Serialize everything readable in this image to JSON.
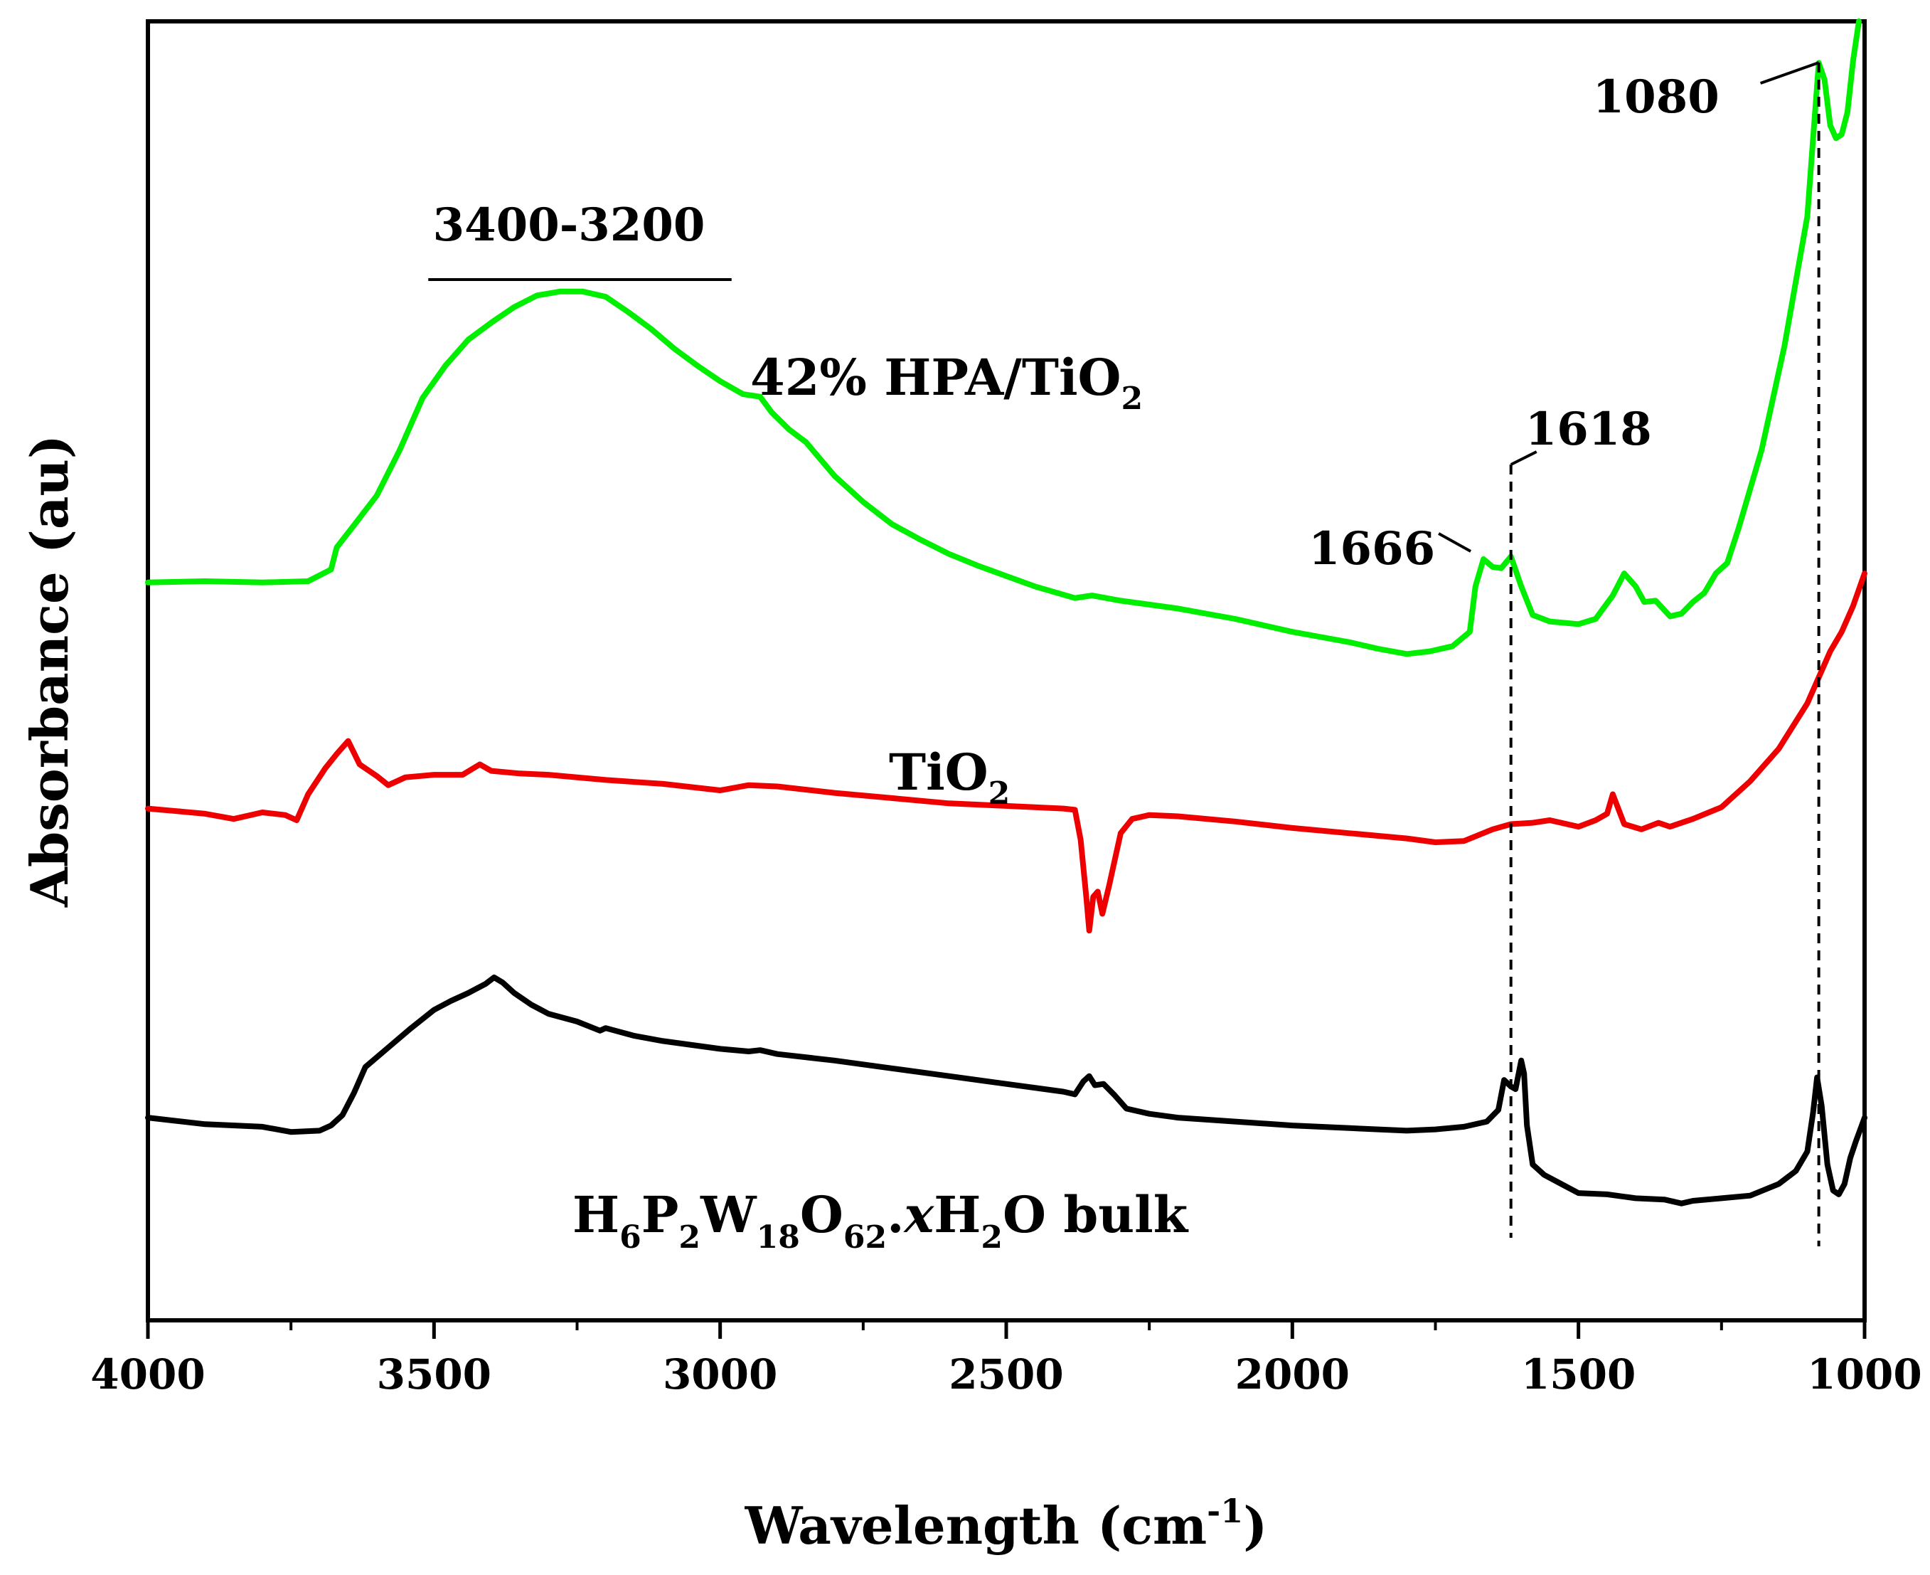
{
  "chart_data": {
    "type": "line",
    "title": "",
    "xlabel": "Wavelength (cm",
    "xlabel_sup": "-1",
    "xlabel_close": ")",
    "ylabel": "Absorbance (au)",
    "xlim": [
      4000,
      1000
    ],
    "ylim": [
      0,
      100
    ],
    "x_reversed": true,
    "x_ticks": [
      4000,
      3500,
      3000,
      2500,
      2000,
      1500,
      1000
    ],
    "x_tick_labels": [
      "4000",
      "3500",
      "3000",
      "2500",
      "2000",
      "1500",
      "1000"
    ],
    "y_ticks_shown": false,
    "grid": false,
    "series": [
      {
        "name": "42% HPA/TiO2",
        "label_parts": {
          "main": "42% HPA/TiO",
          "sub": "2"
        },
        "color": "#00ee00",
        "points": [
          [
            4000,
            56.8
          ],
          [
            3900,
            56.9
          ],
          [
            3800,
            56.8
          ],
          [
            3720,
            56.9
          ],
          [
            3680,
            57.8
          ],
          [
            3670,
            59.5
          ],
          [
            3640,
            61.2
          ],
          [
            3600,
            63.5
          ],
          [
            3560,
            67.0
          ],
          [
            3520,
            71.0
          ],
          [
            3480,
            73.5
          ],
          [
            3440,
            75.5
          ],
          [
            3400,
            76.8
          ],
          [
            3360,
            78.0
          ],
          [
            3320,
            78.9
          ],
          [
            3280,
            79.2
          ],
          [
            3240,
            79.2
          ],
          [
            3200,
            78.8
          ],
          [
            3160,
            77.6
          ],
          [
            3120,
            76.3
          ],
          [
            3080,
            74.8
          ],
          [
            3040,
            73.5
          ],
          [
            3000,
            72.3
          ],
          [
            2960,
            71.3
          ],
          [
            2930,
            71.1
          ],
          [
            2910,
            69.9
          ],
          [
            2880,
            68.6
          ],
          [
            2850,
            67.6
          ],
          [
            2800,
            65.0
          ],
          [
            2750,
            63.0
          ],
          [
            2700,
            61.3
          ],
          [
            2650,
            60.1
          ],
          [
            2600,
            59.0
          ],
          [
            2550,
            58.1
          ],
          [
            2500,
            57.3
          ],
          [
            2450,
            56.5
          ],
          [
            2380,
            55.6
          ],
          [
            2350,
            55.8
          ],
          [
            2300,
            55.4
          ],
          [
            2250,
            55.1
          ],
          [
            2200,
            54.8
          ],
          [
            2100,
            54.0
          ],
          [
            2000,
            53.0
          ],
          [
            1950,
            52.6
          ],
          [
            1900,
            52.2
          ],
          [
            1850,
            51.7
          ],
          [
            1800,
            51.3
          ],
          [
            1760,
            51.5
          ],
          [
            1720,
            51.9
          ],
          [
            1690,
            53.0
          ],
          [
            1680,
            56.5
          ],
          [
            1666,
            58.6
          ],
          [
            1650,
            58.0
          ],
          [
            1635,
            57.9
          ],
          [
            1618,
            58.8
          ],
          [
            1600,
            56.5
          ],
          [
            1580,
            54.3
          ],
          [
            1550,
            53.8
          ],
          [
            1500,
            53.6
          ],
          [
            1470,
            54.0
          ],
          [
            1440,
            55.8
          ],
          [
            1420,
            57.5
          ],
          [
            1400,
            56.5
          ],
          [
            1385,
            55.3
          ],
          [
            1365,
            55.4
          ],
          [
            1340,
            54.2
          ],
          [
            1320,
            54.4
          ],
          [
            1300,
            55.3
          ],
          [
            1280,
            56.0
          ],
          [
            1260,
            57.5
          ],
          [
            1240,
            58.3
          ],
          [
            1220,
            61.0
          ],
          [
            1200,
            64.0
          ],
          [
            1180,
            67.0
          ],
          [
            1160,
            71.0
          ],
          [
            1140,
            75.0
          ],
          [
            1120,
            80.0
          ],
          [
            1100,
            85.0
          ],
          [
            1090,
            91.0
          ],
          [
            1080,
            96.8
          ],
          [
            1070,
            95.5
          ],
          [
            1060,
            92.0
          ],
          [
            1050,
            91.0
          ],
          [
            1040,
            91.3
          ],
          [
            1030,
            93.0
          ],
          [
            1020,
            97.0
          ],
          [
            1010,
            100.0
          ]
        ]
      },
      {
        "name": "TiO2",
        "label_parts": {
          "main": "TiO",
          "sub": "2"
        },
        "color": "#ee0000",
        "points": [
          [
            4000,
            39.4
          ],
          [
            3950,
            39.2
          ],
          [
            3900,
            39.0
          ],
          [
            3850,
            38.6
          ],
          [
            3800,
            39.1
          ],
          [
            3760,
            38.9
          ],
          [
            3740,
            38.5
          ],
          [
            3720,
            40.5
          ],
          [
            3690,
            42.5
          ],
          [
            3670,
            43.6
          ],
          [
            3650,
            44.6
          ],
          [
            3630,
            42.8
          ],
          [
            3600,
            41.9
          ],
          [
            3580,
            41.2
          ],
          [
            3550,
            41.8
          ],
          [
            3500,
            42.0
          ],
          [
            3450,
            42.0
          ],
          [
            3420,
            42.8
          ],
          [
            3400,
            42.3
          ],
          [
            3350,
            42.1
          ],
          [
            3300,
            42.0
          ],
          [
            3200,
            41.6
          ],
          [
            3100,
            41.3
          ],
          [
            3000,
            40.8
          ],
          [
            2950,
            41.2
          ],
          [
            2900,
            41.1
          ],
          [
            2800,
            40.6
          ],
          [
            2700,
            40.2
          ],
          [
            2600,
            39.8
          ],
          [
            2500,
            39.6
          ],
          [
            2400,
            39.4
          ],
          [
            2380,
            39.3
          ],
          [
            2370,
            37.0
          ],
          [
            2360,
            32.5
          ],
          [
            2355,
            30.0
          ],
          [
            2348,
            32.6
          ],
          [
            2340,
            33.0
          ],
          [
            2332,
            31.3
          ],
          [
            2320,
            33.5
          ],
          [
            2300,
            37.5
          ],
          [
            2280,
            38.6
          ],
          [
            2250,
            38.9
          ],
          [
            2200,
            38.8
          ],
          [
            2100,
            38.4
          ],
          [
            2000,
            37.9
          ],
          [
            1900,
            37.5
          ],
          [
            1800,
            37.1
          ],
          [
            1750,
            36.8
          ],
          [
            1700,
            36.9
          ],
          [
            1650,
            37.8
          ],
          [
            1618,
            38.2
          ],
          [
            1580,
            38.3
          ],
          [
            1550,
            38.5
          ],
          [
            1500,
            38.0
          ],
          [
            1470,
            38.5
          ],
          [
            1450,
            39.0
          ],
          [
            1440,
            40.5
          ],
          [
            1420,
            38.2
          ],
          [
            1390,
            37.8
          ],
          [
            1360,
            38.3
          ],
          [
            1340,
            38.0
          ],
          [
            1300,
            38.6
          ],
          [
            1250,
            39.5
          ],
          [
            1200,
            41.5
          ],
          [
            1150,
            44.0
          ],
          [
            1100,
            47.5
          ],
          [
            1080,
            49.5
          ],
          [
            1060,
            51.5
          ],
          [
            1040,
            53.0
          ],
          [
            1020,
            55.0
          ],
          [
            1000,
            57.5
          ]
        ]
      },
      {
        "name": "H6P2W18O62.xH2O bulk",
        "label_parts": [
          {
            "t": "H",
            "s": "n"
          },
          {
            "t": "6",
            "s": "sub"
          },
          {
            "t": "P",
            "s": "n"
          },
          {
            "t": "2",
            "s": "sub"
          },
          {
            "t": "W",
            "s": "n"
          },
          {
            "t": "18",
            "s": "sub"
          },
          {
            "t": "O",
            "s": "n"
          },
          {
            "t": "62",
            "s": "sub"
          },
          {
            "t": ".",
            "s": "n"
          },
          {
            "t": "x",
            "s": "it"
          },
          {
            "t": "H",
            "s": "n"
          },
          {
            "t": "2",
            "s": "sub"
          },
          {
            "t": "O bulk",
            "s": "n"
          }
        ],
        "color": "#000000",
        "points": [
          [
            4000,
            15.6
          ],
          [
            3900,
            15.1
          ],
          [
            3800,
            14.9
          ],
          [
            3750,
            14.5
          ],
          [
            3700,
            14.6
          ],
          [
            3680,
            15.0
          ],
          [
            3660,
            15.8
          ],
          [
            3640,
            17.5
          ],
          [
            3620,
            19.5
          ],
          [
            3580,
            21.0
          ],
          [
            3540,
            22.5
          ],
          [
            3500,
            23.9
          ],
          [
            3470,
            24.6
          ],
          [
            3440,
            25.2
          ],
          [
            3410,
            25.9
          ],
          [
            3395,
            26.4
          ],
          [
            3380,
            26.0
          ],
          [
            3360,
            25.2
          ],
          [
            3330,
            24.3
          ],
          [
            3300,
            23.6
          ],
          [
            3250,
            23.0
          ],
          [
            3210,
            22.3
          ],
          [
            3200,
            22.5
          ],
          [
            3150,
            21.9
          ],
          [
            3100,
            21.5
          ],
          [
            3050,
            21.2
          ],
          [
            3000,
            20.9
          ],
          [
            2950,
            20.7
          ],
          [
            2930,
            20.8
          ],
          [
            2900,
            20.5
          ],
          [
            2800,
            20.0
          ],
          [
            2700,
            19.4
          ],
          [
            2600,
            18.8
          ],
          [
            2500,
            18.2
          ],
          [
            2400,
            17.6
          ],
          [
            2380,
            17.4
          ],
          [
            2365,
            18.4
          ],
          [
            2355,
            18.8
          ],
          [
            2345,
            18.1
          ],
          [
            2330,
            18.2
          ],
          [
            2310,
            17.3
          ],
          [
            2290,
            16.3
          ],
          [
            2250,
            15.9
          ],
          [
            2200,
            15.6
          ],
          [
            2100,
            15.3
          ],
          [
            2000,
            15.0
          ],
          [
            1900,
            14.8
          ],
          [
            1850,
            14.7
          ],
          [
            1800,
            14.6
          ],
          [
            1750,
            14.7
          ],
          [
            1700,
            14.9
          ],
          [
            1660,
            15.3
          ],
          [
            1640,
            16.2
          ],
          [
            1630,
            18.5
          ],
          [
            1618,
            18.0
          ],
          [
            1610,
            17.8
          ],
          [
            1600,
            20.0
          ],
          [
            1595,
            19.0
          ],
          [
            1590,
            15.0
          ],
          [
            1580,
            12.0
          ],
          [
            1560,
            11.2
          ],
          [
            1530,
            10.5
          ],
          [
            1500,
            9.8
          ],
          [
            1450,
            9.7
          ],
          [
            1400,
            9.4
          ],
          [
            1350,
            9.3
          ],
          [
            1320,
            9.0
          ],
          [
            1300,
            9.2
          ],
          [
            1250,
            9.4
          ],
          [
            1200,
            9.6
          ],
          [
            1150,
            10.5
          ],
          [
            1120,
            11.5
          ],
          [
            1100,
            13.0
          ],
          [
            1090,
            16.0
          ],
          [
            1083,
            18.7
          ],
          [
            1075,
            16.5
          ],
          [
            1065,
            12.0
          ],
          [
            1055,
            10.0
          ],
          [
            1045,
            9.7
          ],
          [
            1035,
            10.5
          ],
          [
            1025,
            12.5
          ],
          [
            1015,
            13.8
          ],
          [
            1005,
            15.0
          ],
          [
            1000,
            15.6
          ]
        ]
      }
    ],
    "annotations": [
      {
        "text": "3400-3200",
        "type": "range",
        "x_from": 3510,
        "x_to": 2980
      },
      {
        "text": "1080",
        "type": "peak",
        "x": 1080
      },
      {
        "text": "1618",
        "type": "peak",
        "x": 1618
      },
      {
        "text": "1666",
        "type": "peak",
        "x": 1666
      }
    ]
  }
}
